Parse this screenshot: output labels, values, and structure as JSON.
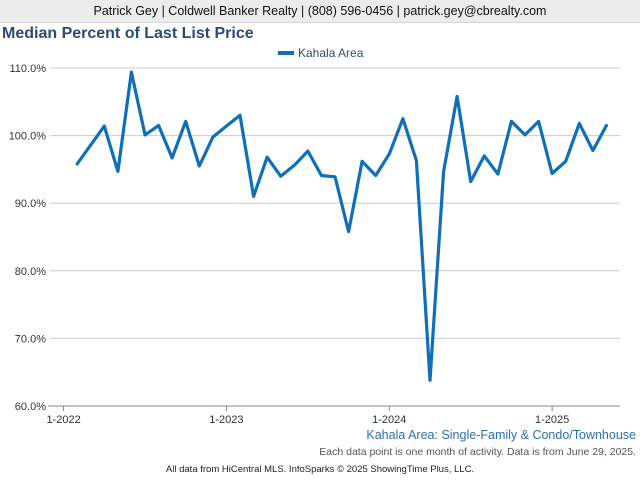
{
  "header": {
    "text": "Patrick Gey | Coldwell Banker Realty | (808) 596-0456 | patrick.gey@cbrealty.com"
  },
  "subtitle_note": "Kahala Area: Single-Family & Condo/Townhouse",
  "data_note": "Each data point is one month of activity. Data is from June 29, 2025.",
  "footer": "All data from HiCentral MLS. InfoSparks © 2025 ShowingTime Plus, LLC.",
  "colors": {
    "series": "#0f6fb8",
    "grid": "#cccccc",
    "title": "#2c4b73"
  },
  "chart_data": {
    "type": "line",
    "title": "Median Percent of Last List Price",
    "xlabel": "",
    "ylabel": "",
    "ylim": [
      60,
      110
    ],
    "y_ticks": [
      {
        "value": 60,
        "label": "60.0%"
      },
      {
        "value": 70,
        "label": "70.0%"
      },
      {
        "value": 80,
        "label": "80.0%"
      },
      {
        "value": 90,
        "label": "90.0%"
      },
      {
        "value": 100,
        "label": "100.0%"
      },
      {
        "value": 110,
        "label": "110.0%"
      }
    ],
    "x_ticks": [
      {
        "value": "2022-01",
        "label": "1-2022"
      },
      {
        "value": "2023-01",
        "label": "1-2023"
      },
      {
        "value": "2024-01",
        "label": "1-2024"
      },
      {
        "value": "2025-01",
        "label": "1-2025"
      }
    ],
    "xlim": [
      "2021-12",
      "2025-06"
    ],
    "grid": true,
    "legend": "top-center",
    "series": [
      {
        "name": "Kahala Area",
        "x": [
          "2022-02",
          "2022-03",
          "2022-04",
          "2022-05",
          "2022-06",
          "2022-07",
          "2022-08",
          "2022-09",
          "2022-10",
          "2022-11",
          "2022-12",
          "2023-01",
          "2023-02",
          "2023-03",
          "2023-04",
          "2023-05",
          "2023-06",
          "2023-07",
          "2023-08",
          "2023-09",
          "2023-10",
          "2023-11",
          "2023-12",
          "2024-01",
          "2024-02",
          "2024-03",
          "2024-04",
          "2024-05",
          "2024-06",
          "2024-07",
          "2024-08",
          "2024-09",
          "2024-10",
          "2024-11",
          "2024-12",
          "2025-01",
          "2025-02",
          "2025-03",
          "2025-04",
          "2025-05"
        ],
        "values": [
          95.8,
          98.6,
          101.4,
          94.7,
          109.4,
          100.1,
          101.5,
          96.7,
          102.1,
          95.5,
          99.8,
          101.4,
          103.0,
          91.0,
          96.8,
          94.0,
          95.6,
          97.7,
          94.1,
          93.9,
          85.8,
          96.2,
          94.1,
          97.3,
          102.5,
          96.3,
          63.8,
          94.7,
          105.8,
          93.2,
          97.0,
          94.3,
          102.1,
          100.1,
          102.1,
          94.4,
          96.2,
          101.8,
          97.8,
          101.5
        ]
      }
    ]
  }
}
